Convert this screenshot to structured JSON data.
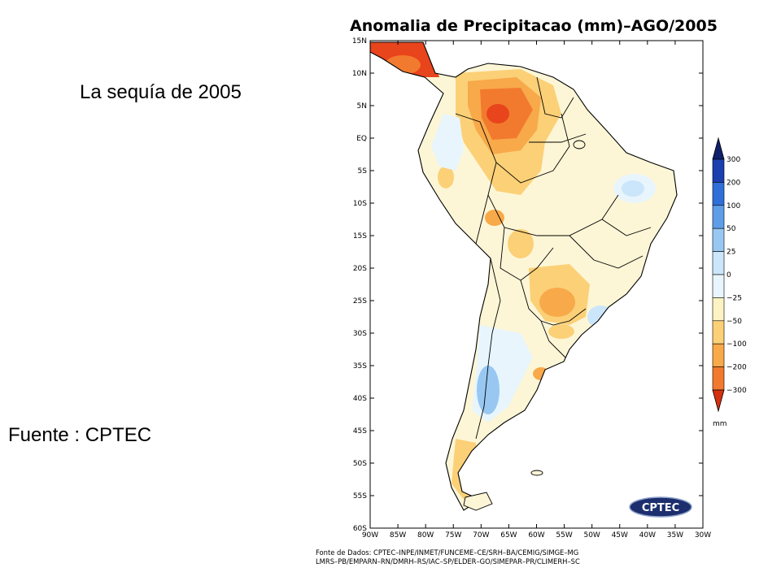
{
  "slide": {
    "title": "La sequía de 2005",
    "source": "Fuente : CPTEC"
  },
  "map": {
    "title": "Anomalia de Precipitacao (mm)–AGO/2005",
    "lat_labels": [
      "15N",
      "10N",
      "5N",
      "EQ",
      "5S",
      "10S",
      "15S",
      "20S",
      "25S",
      "30S",
      "35S",
      "40S",
      "45S",
      "50S",
      "55S",
      "60S"
    ],
    "lon_labels": [
      "90W",
      "85W",
      "80W",
      "75W",
      "70W",
      "65W",
      "60W",
      "55W",
      "50W",
      "45W",
      "40W",
      "35W",
      "30W"
    ],
    "lat_range": [
      15,
      -60
    ],
    "lon_range": [
      -90,
      -30
    ],
    "footer_line1": "Fonte de Dados: CPTEC–INPE/INMET/FUNCEME–CE/SRH–BA/CEMIG/SIMGE–MG",
    "footer_line2": "LMRS–PB/EMPARN–RN/DMRH–RS/IAC–SP/ELDER–GO/SIMEPAR–PR/CLIMERH–SC",
    "logo_text": "CPTEC"
  },
  "legend": {
    "unit": "mm",
    "levels": [
      {
        "label": "300",
        "color": "#1a3fae"
      },
      {
        "label": "200",
        "color": "#2f6fd8"
      },
      {
        "label": "100",
        "color": "#5e9ee9"
      },
      {
        "label": "50",
        "color": "#98c8f2"
      },
      {
        "label": "25",
        "color": "#cbe6fa"
      },
      {
        "label": "0",
        "color": "#e8f5fc"
      },
      {
        "label": "−25",
        "color": "#fdf2c4"
      },
      {
        "label": "−50",
        "color": "#fbd077"
      },
      {
        "label": "−100",
        "color": "#f8a94a"
      },
      {
        "label": "−200",
        "color": "#f27a2e"
      },
      {
        "label": "−300",
        "color": "#e8451c"
      }
    ],
    "top_color": "#10206b",
    "bottom_color": "#d4300e"
  }
}
